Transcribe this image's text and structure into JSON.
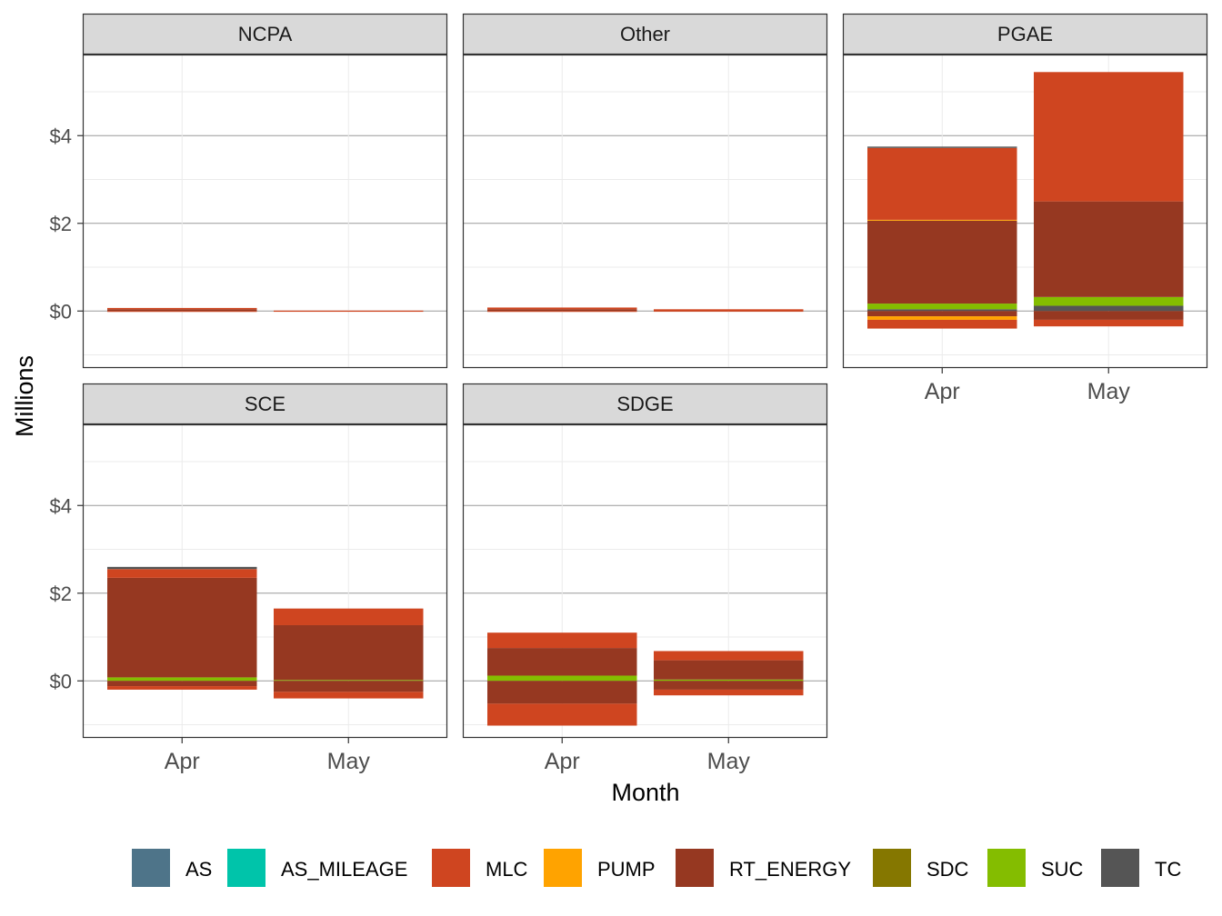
{
  "chart_data": {
    "type": "bar",
    "stacked": true,
    "facet": true,
    "xlabel": "Month",
    "ylabel": "Millions",
    "categories": [
      "Apr",
      "May"
    ],
    "ylim": [
      -1.3,
      5.85
    ],
    "yticks": [
      0,
      2,
      4
    ],
    "ytick_labels": [
      "$0",
      "$2",
      "$4"
    ],
    "grid": true,
    "legend_position": "bottom",
    "legend": [
      {
        "name": "AS",
        "color": "#4e7489"
      },
      {
        "name": "AS_MILEAGE",
        "color": "#00c4aa"
      },
      {
        "name": "MLC",
        "color": "#cf4520"
      },
      {
        "name": "PUMP",
        "color": "#ffa300"
      },
      {
        "name": "RT_ENERGY",
        "color": "#963821"
      },
      {
        "name": "SDC",
        "color": "#857700"
      },
      {
        "name": "SUC",
        "color": "#84bd00"
      },
      {
        "name": "TC",
        "color": "#555555"
      }
    ],
    "panels": [
      {
        "name": "NCPA",
        "bars": [
          {
            "x": "Apr",
            "segments": [
              {
                "series": "RT_ENERGY",
                "y0": 0,
                "y1": 0.04
              },
              {
                "series": "MLC",
                "y0": 0.04,
                "y1": 0.07
              },
              {
                "series": "MLC",
                "y0": -0.02,
                "y1": 0
              }
            ]
          },
          {
            "x": "May",
            "segments": [
              {
                "series": "MLC",
                "y0": 0,
                "y1": 0.01
              },
              {
                "series": "MLC",
                "y0": -0.01,
                "y1": 0
              }
            ]
          }
        ]
      },
      {
        "name": "Other",
        "bars": [
          {
            "x": "Apr",
            "segments": [
              {
                "series": "RT_ENERGY",
                "y0": 0,
                "y1": 0.04
              },
              {
                "series": "MLC",
                "y0": 0.04,
                "y1": 0.08
              },
              {
                "series": "MLC",
                "y0": -0.02,
                "y1": 0
              }
            ]
          },
          {
            "x": "May",
            "segments": [
              {
                "series": "MLC",
                "y0": 0,
                "y1": 0.04
              },
              {
                "series": "MLC",
                "y0": -0.01,
                "y1": 0
              }
            ]
          }
        ]
      },
      {
        "name": "PGAE",
        "bars": [
          {
            "x": "Apr",
            "segments": [
              {
                "series": "TC",
                "y0": 0,
                "y1": 0.04
              },
              {
                "series": "SUC",
                "y0": 0.04,
                "y1": 0.17
              },
              {
                "series": "RT_ENERGY",
                "y0": 0.17,
                "y1": 2.06
              },
              {
                "series": "PUMP",
                "y0": 2.06,
                "y1": 2.08
              },
              {
                "series": "MLC",
                "y0": 2.08,
                "y1": 3.72
              },
              {
                "series": "TC",
                "y0": 3.72,
                "y1": 3.75
              },
              {
                "series": "RT_ENERGY",
                "y0": -0.12,
                "y1": 0
              },
              {
                "series": "PUMP",
                "y0": -0.2,
                "y1": -0.12
              },
              {
                "series": "MLC",
                "y0": -0.4,
                "y1": -0.2
              }
            ]
          },
          {
            "x": "May",
            "segments": [
              {
                "series": "TC",
                "y0": 0,
                "y1": 0.12
              },
              {
                "series": "SUC",
                "y0": 0.12,
                "y1": 0.32
              },
              {
                "series": "RT_ENERGY",
                "y0": 0.32,
                "y1": 2.5
              },
              {
                "series": "MLC",
                "y0": 2.5,
                "y1": 5.45
              },
              {
                "series": "RT_ENERGY",
                "y0": -0.2,
                "y1": 0
              },
              {
                "series": "MLC",
                "y0": -0.35,
                "y1": -0.2
              }
            ]
          }
        ]
      },
      {
        "name": "SCE",
        "bars": [
          {
            "x": "Apr",
            "segments": [
              {
                "series": "SUC",
                "y0": 0,
                "y1": 0.08
              },
              {
                "series": "RT_ENERGY",
                "y0": 0.08,
                "y1": 2.35
              },
              {
                "series": "MLC",
                "y0": 2.35,
                "y1": 2.55
              },
              {
                "series": "TC",
                "y0": 2.55,
                "y1": 2.6
              },
              {
                "series": "RT_ENERGY",
                "y0": -0.12,
                "y1": 0
              },
              {
                "series": "MLC",
                "y0": -0.2,
                "y1": -0.12
              }
            ]
          },
          {
            "x": "May",
            "segments": [
              {
                "series": "SUC",
                "y0": 0,
                "y1": 0.02
              },
              {
                "series": "RT_ENERGY",
                "y0": 0.02,
                "y1": 1.27
              },
              {
                "series": "MLC",
                "y0": 1.27,
                "y1": 1.65
              },
              {
                "series": "RT_ENERGY",
                "y0": -0.25,
                "y1": 0
              },
              {
                "series": "MLC",
                "y0": -0.4,
                "y1": -0.25
              }
            ]
          }
        ]
      },
      {
        "name": "SDGE",
        "bars": [
          {
            "x": "Apr",
            "segments": [
              {
                "series": "SUC",
                "y0": 0,
                "y1": 0.12
              },
              {
                "series": "RT_ENERGY",
                "y0": 0.12,
                "y1": 0.75
              },
              {
                "series": "MLC",
                "y0": 0.75,
                "y1": 1.1
              },
              {
                "series": "RT_ENERGY",
                "y0": -0.52,
                "y1": 0
              },
              {
                "series": "MLC",
                "y0": -1.02,
                "y1": -0.52
              }
            ]
          },
          {
            "x": "May",
            "segments": [
              {
                "series": "SUC",
                "y0": 0,
                "y1": 0.03
              },
              {
                "series": "RT_ENERGY",
                "y0": 0.03,
                "y1": 0.47
              },
              {
                "series": "MLC",
                "y0": 0.47,
                "y1": 0.68
              },
              {
                "series": "RT_ENERGY",
                "y0": -0.2,
                "y1": 0
              },
              {
                "series": "MLC",
                "y0": -0.33,
                "y1": -0.2
              }
            ]
          }
        ]
      }
    ]
  }
}
